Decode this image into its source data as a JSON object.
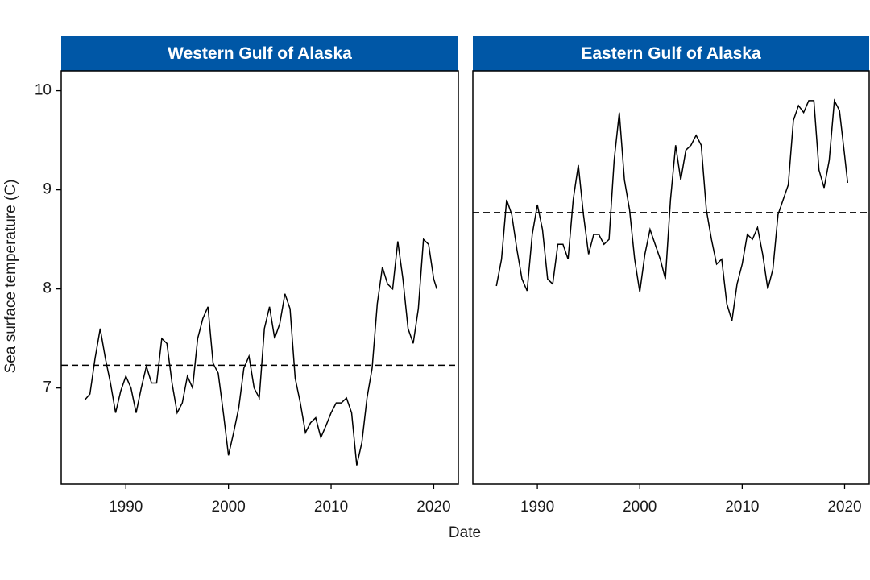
{
  "chart_data": {
    "type": "line",
    "x_label": "Date",
    "y_label": "Sea surface temperature (C)",
    "xlim": [
      1983.7,
      2022.4
    ],
    "xticks": [
      1990,
      2000,
      2010,
      2020
    ],
    "ylim": [
      6.03,
      10.2
    ],
    "yticks": [
      7,
      8,
      9,
      10
    ],
    "strip_color": "#0057a6",
    "x": [
      1986,
      1986.5,
      1987,
      1987.5,
      1988,
      1988.5,
      1989,
      1989.5,
      1990,
      1990.5,
      1991,
      1991.5,
      1992,
      1992.5,
      1993,
      1993.5,
      1994,
      1994.5,
      1995,
      1995.5,
      1996,
      1996.5,
      1997,
      1997.5,
      1998,
      1998.5,
      1999,
      1999.5,
      2000,
      2000.5,
      2001,
      2001.5,
      2002,
      2002.5,
      2003,
      2003.5,
      2004,
      2004.5,
      2005,
      2005.5,
      2006,
      2006.5,
      2007,
      2007.5,
      2008,
      2008.5,
      2009,
      2009.5,
      2010,
      2010.5,
      2011,
      2011.5,
      2012,
      2012.5,
      2013,
      2013.5,
      2014,
      2014.5,
      2015,
      2015.5,
      2016,
      2016.5,
      2017,
      2017.5,
      2018,
      2018.5,
      2019,
      2019.5,
      2020,
      2020.3
    ],
    "series": [
      {
        "name": "Western Gulf of Alaska",
        "color": "#000000",
        "mean": 7.23,
        "values": [
          6.88,
          6.94,
          7.3,
          7.6,
          7.3,
          7.05,
          6.75,
          6.97,
          7.12,
          7.0,
          6.75,
          7.0,
          7.22,
          7.05,
          7.05,
          7.5,
          7.45,
          7.05,
          6.75,
          6.85,
          7.12,
          7.0,
          7.5,
          7.7,
          7.82,
          7.25,
          7.15,
          6.75,
          6.32,
          6.55,
          6.8,
          7.2,
          7.32,
          7.0,
          6.9,
          7.6,
          7.82,
          7.5,
          7.65,
          7.95,
          7.8,
          7.1,
          6.85,
          6.55,
          6.65,
          6.7,
          6.5,
          6.62,
          6.75,
          6.85,
          6.85,
          6.9,
          6.75,
          6.22,
          6.45,
          6.9,
          7.2,
          7.85,
          8.22,
          8.05,
          8.0,
          8.48,
          8.1,
          7.6,
          7.45,
          7.8,
          8.5,
          8.45,
          8.1,
          8.0
        ]
      },
      {
        "name": "Eastern Gulf of Alaska",
        "color": "#000000",
        "mean": 8.77,
        "values": [
          8.03,
          8.3,
          8.9,
          8.75,
          8.4,
          8.1,
          7.98,
          8.55,
          8.85,
          8.6,
          8.1,
          8.05,
          8.45,
          8.45,
          8.3,
          8.9,
          9.25,
          8.75,
          8.35,
          8.55,
          8.55,
          8.45,
          8.5,
          9.3,
          9.78,
          9.1,
          8.8,
          8.3,
          7.97,
          8.35,
          8.6,
          8.45,
          8.3,
          8.1,
          8.9,
          9.45,
          9.1,
          9.4,
          9.45,
          9.55,
          9.45,
          8.8,
          8.5,
          8.25,
          8.3,
          7.85,
          7.68,
          8.05,
          8.25,
          8.55,
          8.5,
          8.62,
          8.35,
          8.0,
          8.2,
          8.75,
          8.9,
          9.05,
          9.7,
          9.85,
          9.78,
          9.9,
          9.9,
          9.2,
          9.02,
          9.3,
          9.9,
          9.8,
          9.35,
          9.07
        ]
      }
    ]
  }
}
